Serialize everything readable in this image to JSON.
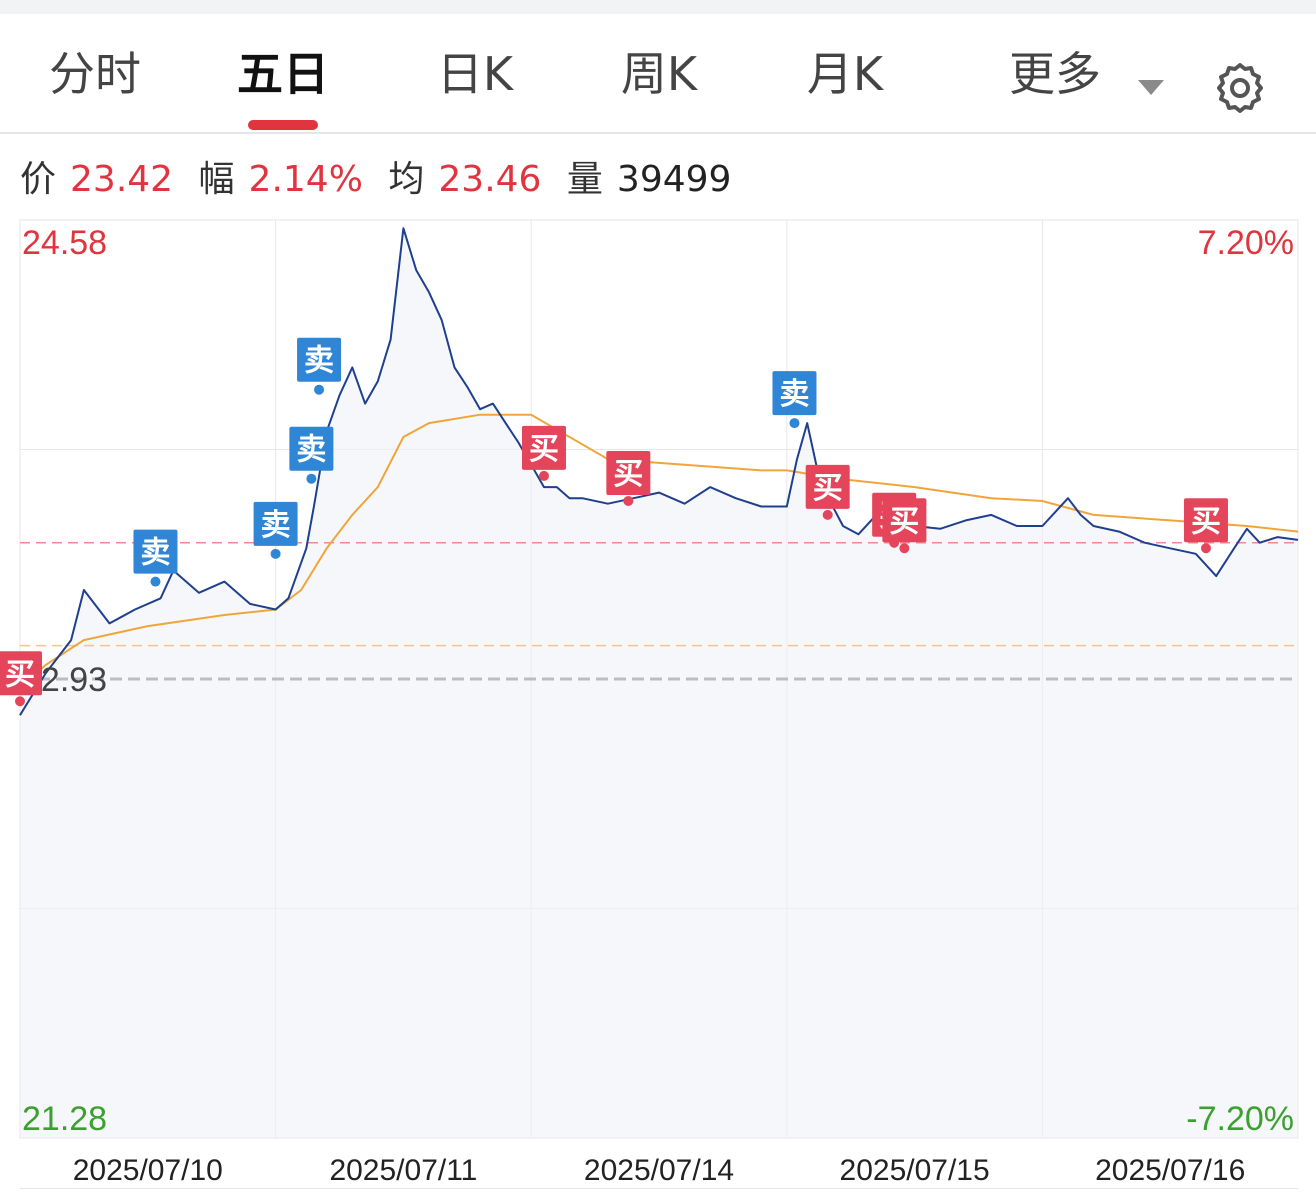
{
  "tabs": [
    {
      "label": "分时"
    },
    {
      "label": "五日"
    },
    {
      "label": "日K"
    },
    {
      "label": "周K"
    },
    {
      "label": "月K"
    },
    {
      "label": "更多"
    }
  ],
  "active_tab": "五日",
  "icons": {
    "more_dropdown": "caret-down-icon",
    "settings": "gear-icon"
  },
  "info_bar": {
    "price_label": "价",
    "price": "23.42",
    "change_label": "幅",
    "change": "2.14%",
    "avg_label": "均",
    "avg": "23.46",
    "volume_label": "量",
    "volume": "39499"
  },
  "colors": {
    "up": "#e0343e",
    "down": "#3aa12f",
    "price_line": "#1f3f8f",
    "avg_line": "#f0a53a",
    "buy": "#e5455a",
    "sell": "#2f86d6"
  },
  "chart_data": {
    "type": "line",
    "ylim": [
      21.28,
      24.58
    ],
    "y_left_labels": {
      "top": "24.58",
      "bottom": "21.28"
    },
    "y_right_labels": {
      "top": "7.20%",
      "bottom": "-7.20%"
    },
    "prev_close": 22.93,
    "prev_close_label": "22.93",
    "current_price": 23.42,
    "ref_avg_level": 23.05,
    "x_labels": [
      "2025/07/10",
      "2025/07/11",
      "2025/07/14",
      "2025/07/15",
      "2025/07/16"
    ],
    "series": [
      {
        "name": "价",
        "points": [
          [
            0.0,
            22.8
          ],
          [
            0.1,
            22.95
          ],
          [
            0.2,
            23.07
          ],
          [
            0.25,
            23.25
          ],
          [
            0.35,
            23.13
          ],
          [
            0.45,
            23.18
          ],
          [
            0.55,
            23.22
          ],
          [
            0.6,
            23.32
          ],
          [
            0.7,
            23.24
          ],
          [
            0.8,
            23.28
          ],
          [
            0.9,
            23.2
          ],
          [
            1.0,
            23.18
          ],
          [
            1.05,
            23.22
          ],
          [
            1.12,
            23.4
          ],
          [
            1.15,
            23.55
          ],
          [
            1.2,
            23.82
          ],
          [
            1.25,
            23.95
          ],
          [
            1.3,
            24.05
          ],
          [
            1.35,
            23.92
          ],
          [
            1.4,
            24.0
          ],
          [
            1.45,
            24.15
          ],
          [
            1.5,
            24.55
          ],
          [
            1.55,
            24.4
          ],
          [
            1.6,
            24.32
          ],
          [
            1.65,
            24.22
          ],
          [
            1.7,
            24.05
          ],
          [
            1.75,
            23.98
          ],
          [
            1.8,
            23.9
          ],
          [
            1.85,
            23.92
          ],
          [
            1.9,
            23.85
          ],
          [
            1.95,
            23.78
          ],
          [
            2.0,
            23.7
          ],
          [
            2.05,
            23.62
          ],
          [
            2.1,
            23.62
          ],
          [
            2.15,
            23.58
          ],
          [
            2.2,
            23.58
          ],
          [
            2.3,
            23.56
          ],
          [
            2.4,
            23.58
          ],
          [
            2.5,
            23.6
          ],
          [
            2.6,
            23.56
          ],
          [
            2.7,
            23.62
          ],
          [
            2.8,
            23.58
          ],
          [
            2.9,
            23.55
          ],
          [
            3.0,
            23.55
          ],
          [
            3.04,
            23.72
          ],
          [
            3.08,
            23.85
          ],
          [
            3.12,
            23.68
          ],
          [
            3.18,
            23.55
          ],
          [
            3.22,
            23.48
          ],
          [
            3.28,
            23.45
          ],
          [
            3.35,
            23.52
          ],
          [
            3.45,
            23.5
          ],
          [
            3.5,
            23.48
          ],
          [
            3.6,
            23.47
          ],
          [
            3.7,
            23.5
          ],
          [
            3.8,
            23.52
          ],
          [
            3.9,
            23.48
          ],
          [
            4.0,
            23.48
          ],
          [
            4.1,
            23.58
          ],
          [
            4.15,
            23.52
          ],
          [
            4.2,
            23.48
          ],
          [
            4.3,
            23.46
          ],
          [
            4.4,
            23.42
          ],
          [
            4.5,
            23.4
          ],
          [
            4.6,
            23.38
          ],
          [
            4.68,
            23.3
          ],
          [
            4.75,
            23.4
          ],
          [
            4.8,
            23.47
          ],
          [
            4.85,
            23.42
          ],
          [
            4.92,
            23.44
          ],
          [
            5.0,
            23.43
          ]
        ]
      },
      {
        "name": "均",
        "points": [
          [
            0.0,
            22.9
          ],
          [
            0.1,
            22.98
          ],
          [
            0.25,
            23.07
          ],
          [
            0.5,
            23.12
          ],
          [
            0.8,
            23.16
          ],
          [
            1.0,
            23.18
          ],
          [
            1.1,
            23.25
          ],
          [
            1.2,
            23.4
          ],
          [
            1.3,
            23.52
          ],
          [
            1.4,
            23.62
          ],
          [
            1.5,
            23.8
          ],
          [
            1.6,
            23.85
          ],
          [
            1.8,
            23.88
          ],
          [
            2.0,
            23.88
          ],
          [
            2.3,
            23.72
          ],
          [
            2.6,
            23.7
          ],
          [
            2.9,
            23.68
          ],
          [
            3.0,
            23.68
          ],
          [
            3.2,
            23.65
          ],
          [
            3.5,
            23.62
          ],
          [
            3.8,
            23.58
          ],
          [
            4.0,
            23.57
          ],
          [
            4.2,
            23.52
          ],
          [
            4.5,
            23.5
          ],
          [
            4.8,
            23.48
          ],
          [
            5.0,
            23.46
          ]
        ]
      }
    ],
    "markers": [
      {
        "type": "买",
        "t": 0.0,
        "price": 22.85
      },
      {
        "type": "卖",
        "t": 0.53,
        "price": 23.28
      },
      {
        "type": "卖",
        "t": 1.0,
        "price": 23.38
      },
      {
        "type": "卖",
        "t": 1.14,
        "price": 23.65
      },
      {
        "type": "卖",
        "t": 1.17,
        "price": 23.97
      },
      {
        "type": "买",
        "t": 2.05,
        "price": 23.66
      },
      {
        "type": "买",
        "t": 2.38,
        "price": 23.57
      },
      {
        "type": "卖",
        "t": 3.03,
        "price": 23.85
      },
      {
        "type": "买",
        "t": 3.16,
        "price": 23.52
      },
      {
        "type": "买",
        "t": 3.42,
        "price": 23.42
      },
      {
        "type": "买",
        "t": 3.46,
        "price": 23.4
      },
      {
        "type": "买",
        "t": 4.64,
        "price": 23.4
      }
    ]
  }
}
